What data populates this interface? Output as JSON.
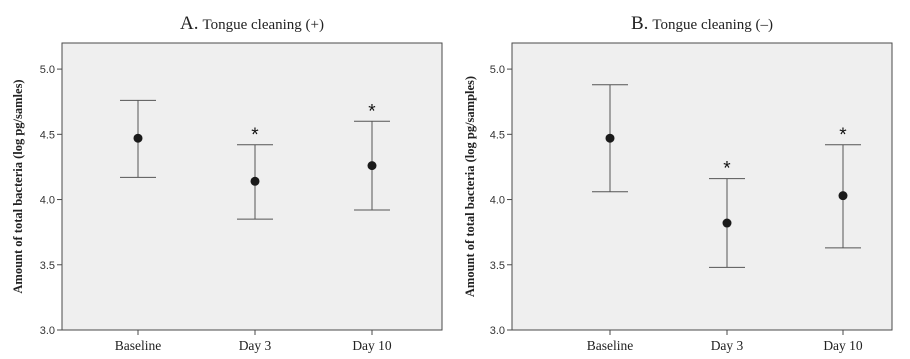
{
  "chart_data": [
    {
      "type": "scatter",
      "title_letter": "A.",
      "title_text": "Tongue cleaning (+)",
      "xlabel": "",
      "ylabel": "Amount  of total bacteria (log pg/samles)",
      "categories": [
        "Baseline",
        "Day 3",
        "Day 10"
      ],
      "series": [
        {
          "values": [
            4.47,
            4.14,
            4.26
          ],
          "error_low": [
            4.17,
            3.85,
            3.92
          ],
          "error_high": [
            4.76,
            4.42,
            4.6
          ]
        }
      ],
      "significance": [
        "",
        "*",
        "*"
      ],
      "ylim": [
        3.0,
        5.2
      ],
      "yticks": [
        "3.0",
        "3.5",
        "4.0",
        "4.5",
        "5.0"
      ],
      "grid": false,
      "colors": {
        "plot_bg": "#efefef",
        "marker": "#1a1a1a",
        "error_bar": "#555555"
      }
    },
    {
      "type": "scatter",
      "title_letter": "B.",
      "title_text": "Tongue cleaning (–)",
      "xlabel": "",
      "ylabel": "Amount of total bacteria (log pg/samples)",
      "categories": [
        "Baseline",
        "Day 3",
        "Day 10"
      ],
      "series": [
        {
          "values": [
            4.47,
            3.82,
            4.03
          ],
          "error_low": [
            4.06,
            3.48,
            3.63
          ],
          "error_high": [
            4.88,
            4.16,
            4.42
          ]
        }
      ],
      "significance": [
        "",
        "*",
        "*"
      ],
      "ylim": [
        3.0,
        5.2
      ],
      "yticks": [
        "3.0",
        "3.5",
        "4.0",
        "4.5",
        "5.0"
      ],
      "grid": false,
      "colors": {
        "plot_bg": "#efefef",
        "marker": "#1a1a1a",
        "error_bar": "#555555"
      }
    }
  ]
}
